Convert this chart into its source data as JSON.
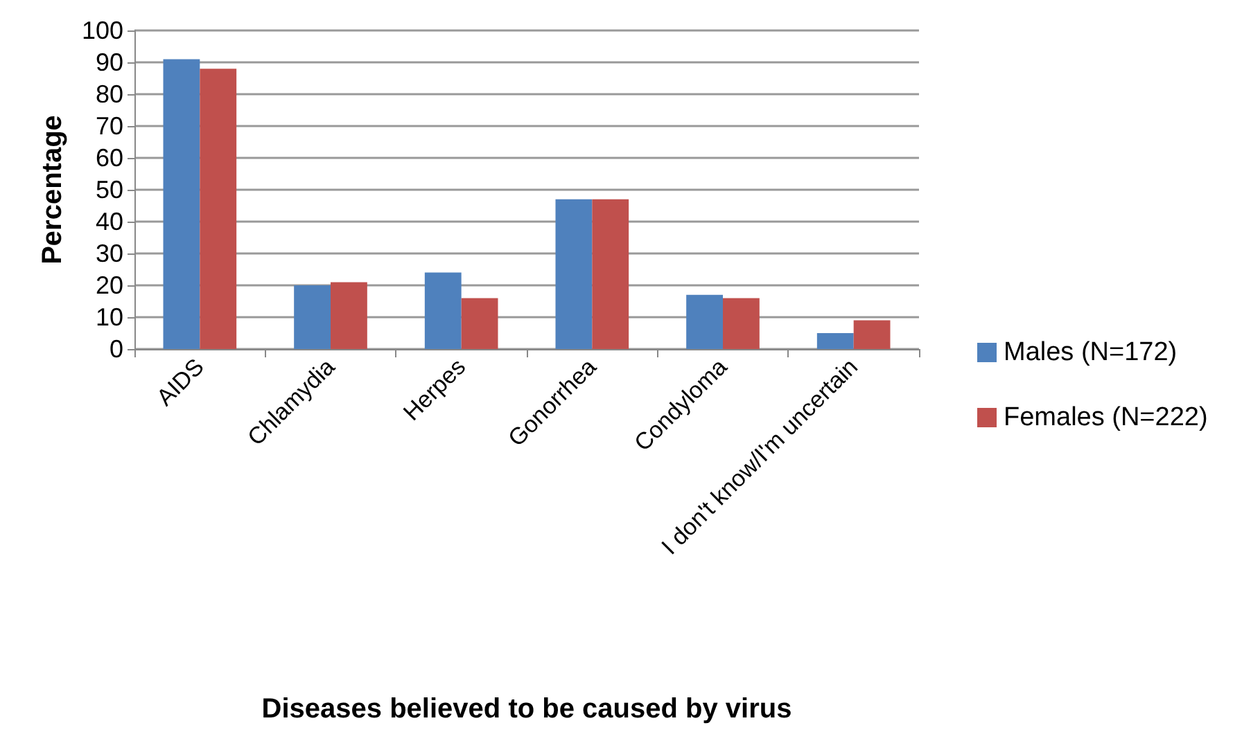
{
  "chart_data": {
    "type": "bar",
    "xlabel": "Diseases believed to be caused by virus",
    "ylabel": "Percentage",
    "categories": [
      "AIDS",
      "Chlamydia",
      "Herpes",
      "Gonorrhea",
      "Condyloma",
      "I don't know/I'm uncertain"
    ],
    "series": [
      {
        "name": "Males (N=172)",
        "color": "#4f81bd",
        "values": [
          91,
          20,
          24,
          47,
          17,
          5
        ]
      },
      {
        "name": "Females (N=222)",
        "color": "#c0504d",
        "values": [
          88,
          21,
          16,
          47,
          16,
          9
        ]
      }
    ],
    "ylim": [
      0,
      100
    ],
    "yticks": [
      0,
      10,
      20,
      30,
      40,
      50,
      60,
      70,
      80,
      90,
      100
    ],
    "grid": "y",
    "legend": "right"
  }
}
